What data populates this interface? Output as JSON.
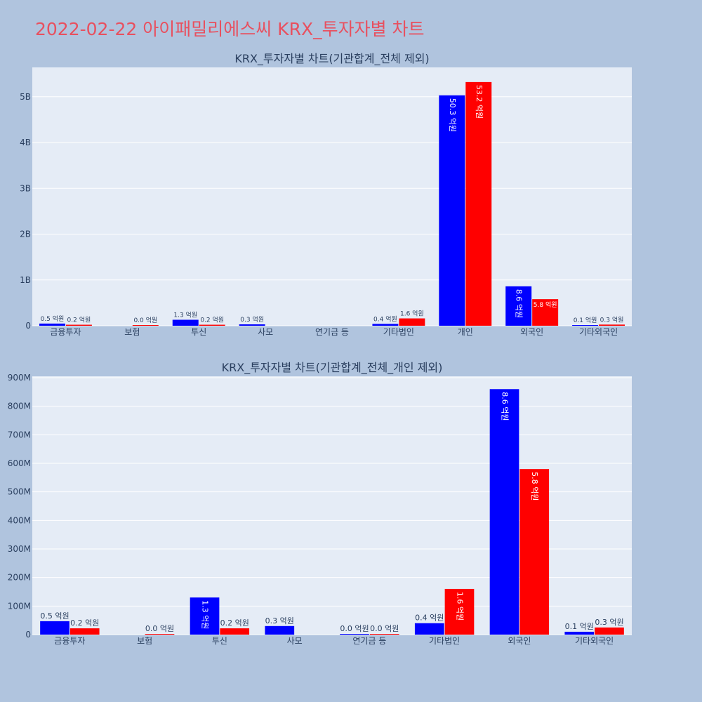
{
  "page": {
    "title": "2022-02-22 아이패밀리에스씨 KRX_투자자별 차트"
  },
  "colors": {
    "background": "#b0c4de",
    "plot_bg": "#e5ecf6",
    "title": "#e8505f",
    "series_a": "#0000ff",
    "series_b": "#ff0000",
    "text": "#2a3f5f"
  },
  "chart_data": [
    {
      "type": "bar",
      "title": "KRX_투자자별 차트(기관합계_전체 제외)",
      "categories": [
        "금융투자",
        "보험",
        "투신",
        "사모",
        "연기금 등",
        "기타법인",
        "개인",
        "외국인",
        "기타외국인"
      ],
      "series": [
        {
          "values": [
            47000000,
            null,
            130000000,
            30000000,
            null,
            40000000,
            5030000000,
            860000000,
            10000000
          ],
          "labels": [
            "0.5 억원",
            "",
            "1.3 억원",
            "0.3 억원",
            "",
            "0.4 억원",
            "50.3 억원",
            "8.6 억원",
            "0.1 억원"
          ]
        },
        {
          "values": [
            22000000,
            1000000,
            22000000,
            null,
            null,
            160000000,
            5320000000,
            580000000,
            25000000
          ],
          "labels": [
            "0.2 억원",
            "0.0 억원",
            "0.2 억원",
            "",
            "",
            "1.6 억원",
            "53.2 억원",
            "5.8 억원",
            "0.3 억원"
          ]
        }
      ],
      "ylim": [
        0,
        5640000000
      ],
      "yticks": [
        0,
        1000000000,
        2000000000,
        3000000000,
        4000000000,
        5000000000
      ],
      "ytick_labels": [
        "0",
        "1B",
        "2B",
        "3B",
        "4B",
        "5B"
      ],
      "grid": true
    },
    {
      "type": "bar",
      "title": "KRX_투자자별 차트(기관합계_전체_개인 제외)",
      "categories": [
        "금융투자",
        "보험",
        "투신",
        "사모",
        "연기금 등",
        "기타법인",
        "외국인",
        "기타외국인"
      ],
      "series": [
        {
          "values": [
            47000000,
            null,
            130000000,
            30000000,
            500000,
            40000000,
            860000000,
            10000000
          ],
          "labels": [
            "0.5 억원",
            "",
            "1.3 억원",
            "0.3 억원",
            "0.0 억원",
            "0.4 억원",
            "8.6 억원",
            "0.1 억원"
          ]
        },
        {
          "values": [
            22000000,
            1000000,
            22000000,
            null,
            500000,
            160000000,
            580000000,
            25000000
          ],
          "labels": [
            "0.2 억원",
            "0.0 억원",
            "0.2 억원",
            "",
            "0.0 억원",
            "1.6 억원",
            "5.8 억원",
            "0.3 억원"
          ]
        }
      ],
      "ylim": [
        0,
        905000000
      ],
      "yticks": [
        0,
        100000000,
        200000000,
        300000000,
        400000000,
        500000000,
        600000000,
        700000000,
        800000000,
        900000000
      ],
      "ytick_labels": [
        "0",
        "100M",
        "200M",
        "300M",
        "400M",
        "500M",
        "600M",
        "700M",
        "800M",
        "900M"
      ],
      "grid": true
    }
  ]
}
